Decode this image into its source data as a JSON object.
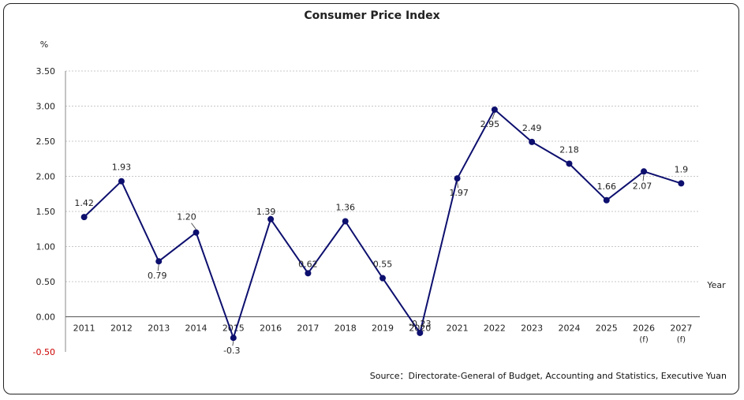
{
  "chart_data": {
    "type": "line",
    "title": "Consumer Price Index",
    "ylabel": "%",
    "xlabel": "Year",
    "ylim": [
      -0.5,
      3.5
    ],
    "y_ticks": [
      "3.50",
      "3.00",
      "2.50",
      "2.00",
      "1.50",
      "1.00",
      "0.50",
      "0.00",
      "-0.50"
    ],
    "categories": [
      "2011",
      "2012",
      "2013",
      "2014",
      "2015",
      "2016",
      "2017",
      "2018",
      "2019",
      "2020",
      "2021",
      "2022",
      "2023",
      "2024",
      "2025",
      "2026",
      "2027"
    ],
    "category_sublabels": [
      "",
      "",
      "",
      "",
      "",
      "",
      "",
      "",
      "",
      "",
      "",
      "",
      "",
      "",
      "",
      "(f)",
      "(f)"
    ],
    "series": [
      {
        "values": [
          1.42,
          1.93,
          0.79,
          1.2,
          -0.3,
          1.39,
          0.62,
          1.36,
          0.55,
          -0.23,
          1.97,
          2.95,
          2.49,
          2.18,
          1.66,
          2.07,
          1.9
        ],
        "labels": [
          "1.42",
          "1.93",
          "0.79",
          "1.20",
          "-0.3",
          "1.39",
          "0.62",
          "1.36",
          "0.55",
          "-0.23",
          "1.97",
          "2.95",
          "2.49",
          "2.18",
          "1.66",
          "2.07",
          "1.9"
        ]
      }
    ],
    "grid": true,
    "colors": {
      "line": "#0d0f6e",
      "marker": "#0d0f6e",
      "negative_tick": "#cc0000",
      "grid": "#c8c8c8"
    }
  },
  "source": "Source：Directorate-General of Budget, Accounting and Statistics, Executive Yuan"
}
